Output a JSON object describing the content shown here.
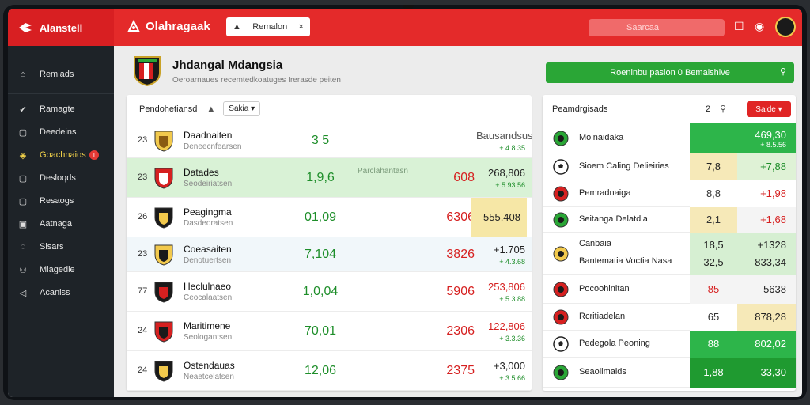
{
  "topbar": {
    "brand": "Alanstell",
    "app_title": "Olahragaak",
    "top_button": "Remalon",
    "search_placeholder": "Saarcaa"
  },
  "sidebar": {
    "items": [
      {
        "label": "Remiads",
        "icon": "home-icon"
      },
      {
        "label": "Ramagte",
        "icon": "check-icon"
      },
      {
        "label": "Deedeins",
        "icon": "square-icon"
      },
      {
        "label": "Goachnaios",
        "icon": "trophy-icon",
        "badge": "1"
      },
      {
        "label": "Desloqds",
        "icon": "square-icon"
      },
      {
        "label": "Resaogs",
        "icon": "square-icon"
      },
      {
        "label": "Aatnaga",
        "icon": "image-icon"
      },
      {
        "label": "Sisars",
        "icon": "chat-icon"
      },
      {
        "label": "Mlagedle",
        "icon": "people-icon"
      },
      {
        "label": "Acaniss",
        "icon": "megaphone-icon"
      }
    ]
  },
  "header": {
    "title": "Jhdangal Mdangsia",
    "subtitle": "Oeroarnaues recemtedkoatuges Irerasde peiten",
    "green_button": "Roeninbu pasion 0 Bemalshive"
  },
  "main": {
    "head_label": "Pendohetiansd",
    "select_label": "Sakia",
    "rows": [
      {
        "num": "23",
        "name": "Daadnaiten",
        "sub": "Deneecnfearsen",
        "v1": "3 5",
        "mid": "",
        "v2": "",
        "odd": "Bausandsus",
        "odd_sub": "+ 4.8.35",
        "bg": "#ffffff",
        "odd_bg": "",
        "odd_color": "#555"
      },
      {
        "num": "23",
        "name": "Datades",
        "sub": "Seodeiriatsen",
        "v1": "1,9,6",
        "mid": "Parclahantasn",
        "v2": "608",
        "odd": "268,806",
        "odd_sub": "+ 5.93.56",
        "bg": "#d9f2d6",
        "odd_bg": "",
        "odd_color": "#222"
      },
      {
        "num": "26",
        "name": "Peagingma",
        "sub": "Dasdeoratsen",
        "v1": "01,09",
        "mid": "",
        "v2": "6306",
        "odd": "555,408",
        "odd_sub": "",
        "bg": "#ffffff",
        "odd_bg": "#f6e7a6",
        "odd_color": "#222"
      },
      {
        "num": "23",
        "name": "Coeasaiten",
        "sub": "Denotuertsen",
        "v1": "7,104",
        "mid": "",
        "v2": "3826",
        "odd": "+1.705",
        "odd_sub": "+ 4.3.68",
        "bg": "#f1f7fa",
        "odd_bg": "",
        "odd_color": "#222"
      },
      {
        "num": "77",
        "name": "Heclulnaeo",
        "sub": "Ceocalaatsen",
        "v1": "1,0,04",
        "mid": "",
        "v2": "5906",
        "odd": "253,806",
        "odd_sub": "+ 5.3.88",
        "bg": "#ffffff",
        "odd_bg": "",
        "odd_color": "#d62020"
      },
      {
        "num": "24",
        "name": "Maritimene",
        "sub": "Seologantsen",
        "v1": "70,01",
        "mid": "",
        "v2": "2306",
        "odd": "122,806",
        "odd_sub": "+ 3.3.36",
        "bg": "#ffffff",
        "odd_bg": "",
        "odd_color": "#d62020"
      },
      {
        "num": "24",
        "name": "Ostendauas",
        "sub": "Neaetcelatsen",
        "v1": "12,06",
        "mid": "",
        "v2": "2375",
        "odd": "+3,000",
        "odd_sub": "+ 3.5.66",
        "bg": "#ffffff",
        "odd_bg": "",
        "odd_color": "#222"
      }
    ]
  },
  "right": {
    "head_label": "Peamdrgisads",
    "count": "2",
    "button": "Saide",
    "rows": [
      {
        "name": "Molnaidaka",
        "c1": "",
        "c2": "469,30",
        "c2_sub": "+ 8.5.56",
        "c1_bg": "#2db54a",
        "c2_bg": "#2db54a",
        "c1_color": "#fff",
        "c2_color": "#fff",
        "icon": "crest-green"
      },
      {
        "name": "Sioem Caling Delieiries",
        "c1": "7,8",
        "c2": "+7,88",
        "c2_sub": "",
        "c1_bg": "#f6e9b8",
        "c2_bg": "#dff2d6",
        "c1_color": "#222",
        "c2_color": "#1e8e2a",
        "icon": "ball"
      },
      {
        "name": "Pemradnaiga",
        "c1": "8,8",
        "c2": "+1,98",
        "c2_sub": "",
        "c1_bg": "#ffffff",
        "c2_bg": "#ffffff",
        "c1_color": "#333",
        "c2_color": "#d62020",
        "icon": "crest-red"
      },
      {
        "name": "Seitanga Delatdia",
        "c1": "2,1",
        "c2": "+1,68",
        "c2_sub": "",
        "c1_bg": "#f6e9b8",
        "c2_bg": "#f4f4f4",
        "c1_color": "#333",
        "c2_color": "#d62020",
        "icon": "crest-green"
      },
      {
        "name": "Canbaia",
        "name2": "Bantematia Voctia Nasa",
        "c1": "18,5",
        "c1b": "32,5",
        "c2": "+1328",
        "c2b": "833,34",
        "c2_sub": "",
        "c1_bg": "#d6efd2",
        "c2_bg": "#d6efd2",
        "c1_color": "#222",
        "c2_color": "#222",
        "icon": "crest-gold"
      },
      {
        "name": "Pocoohinitan",
        "c1": "85",
        "c2": "5638",
        "c2_sub": "",
        "c1_bg": "#f4f4f4",
        "c2_bg": "#f4f4f4",
        "c1_color": "#d62020",
        "c2_color": "#222",
        "icon": "crest-red"
      },
      {
        "name": "Rcritiadelan",
        "c1": "65",
        "c2": "878,28",
        "c2_sub": "",
        "c1_bg": "#ffffff",
        "c2_bg": "#f6e9b8",
        "c1_color": "#333",
        "c2_color": "#222",
        "icon": "crest-red"
      },
      {
        "name": "Pedegola Peoning",
        "c1": "88",
        "c2": "802,02",
        "c2_sub": "",
        "c1_bg": "#2db54a",
        "c2_bg": "#2db54a",
        "c1_color": "#fff",
        "c2_color": "#fff",
        "icon": "ball"
      },
      {
        "name": "Seaoilmaids",
        "c1": "1,88",
        "c2": "33,30",
        "c2_sub": "",
        "c1_bg": "#1f9a30",
        "c2_bg": "#1f9a30",
        "c1_color": "#fff",
        "c2_color": "#fff",
        "icon": "crest-green"
      }
    ]
  },
  "colors": {
    "accent_red": "#e42a2a",
    "accent_green": "#2aa636",
    "sidebar_bg": "#1e2328"
  }
}
